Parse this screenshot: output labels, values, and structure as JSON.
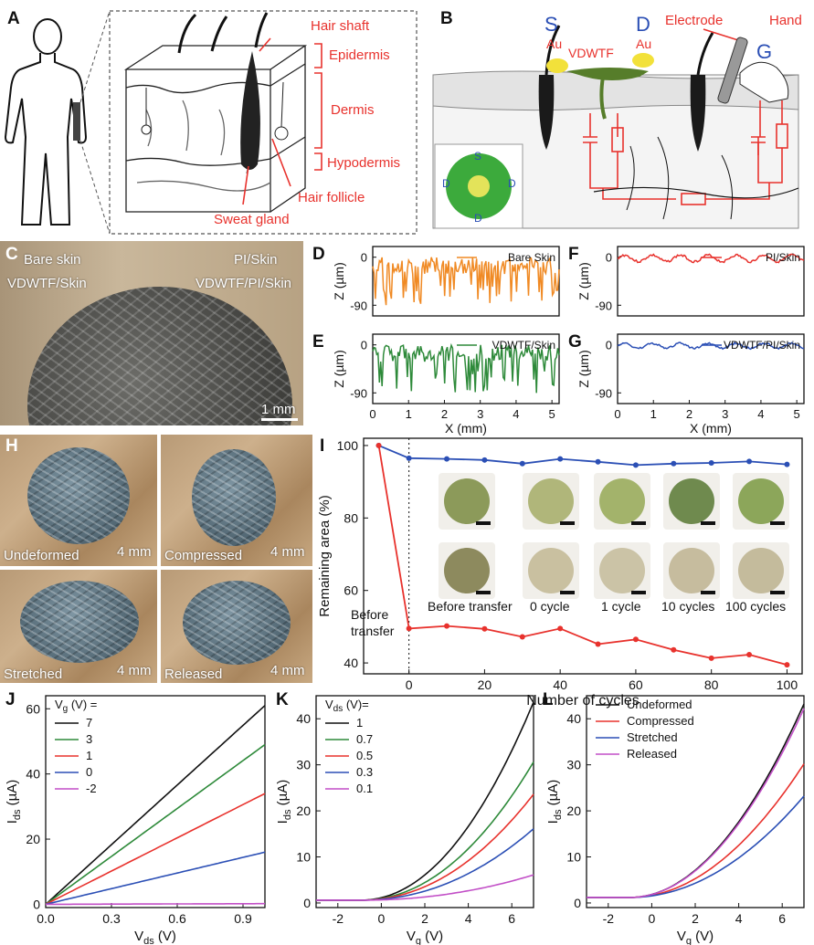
{
  "labels": {
    "A": "A",
    "B": "B",
    "C": "C",
    "D": "D",
    "E": "E",
    "F": "F",
    "G": "G",
    "H": "H",
    "I": "I",
    "J": "J",
    "K": "K",
    "L": "L"
  },
  "panelA": {
    "hair_shaft": "Hair shaft",
    "epidermis": "Epidermis",
    "dermis": "Dermis",
    "hypodermis": "Hypodermis",
    "hair_follicle": "Hair follicle",
    "sweat_gland": "Sweat gland",
    "label_color": "#e8322d"
  },
  "panelB": {
    "S": "S",
    "D": "D",
    "G": "G",
    "au_left": "Au",
    "au_right": "Au",
    "vdwtf": "VDWTF",
    "electrode": "Electrode",
    "hand": "Hand",
    "inset_S": "S",
    "inset_D": "D",
    "blue": "#2b4fb5",
    "red": "#e8322d"
  },
  "panelC": {
    "bare_skin": "Bare skin",
    "vdwtf_skin": "VDWTF/Skin",
    "pi_skin": "PI/Skin",
    "vdwtf_pi_skin": "VDWTF/PI/Skin",
    "scale": "1 mm"
  },
  "panelH": {
    "undeformed": "Undeformed",
    "compressed": "Compressed",
    "stretched": "Stretched",
    "released": "Released",
    "scale": "4 mm"
  },
  "panelI_thumbs": {
    "before_transfer": "Before transfer",
    "c0": "0 cycle",
    "c1": "1 cycle",
    "c10": "10 cycles",
    "c100": "100 cycles",
    "before_transfer_annotation": "Before\ntransfer"
  },
  "chart_data": [
    {
      "id": "D",
      "type": "line",
      "ylabel": "Z (µm)",
      "xlabel": "",
      "xlim": [
        0,
        5.2
      ],
      "ylim": [
        -110,
        20
      ],
      "yticks": [
        "0",
        "-90"
      ],
      "xticks": [],
      "series": [
        {
          "name": "Bare Skin",
          "color": "#f08a24",
          "amp": 90,
          "seed": 1
        }
      ]
    },
    {
      "id": "E",
      "type": "line",
      "ylabel": "Z (µm)",
      "xlabel": "X (mm)",
      "xlim": [
        0,
        5.2
      ],
      "ylim": [
        -110,
        20
      ],
      "yticks": [
        "0",
        "-90"
      ],
      "xticks": [
        "0",
        "1",
        "2",
        "3",
        "4",
        "5"
      ],
      "series": [
        {
          "name": "VDWTF/Skin",
          "color": "#2e8a3a",
          "amp": 90,
          "seed": 2
        }
      ]
    },
    {
      "id": "F",
      "type": "line",
      "ylabel": "Z (µm)",
      "xlabel": "",
      "xlim": [
        0,
        5.2
      ],
      "ylim": [
        -110,
        20
      ],
      "yticks": [
        "0",
        "-90"
      ],
      "xticks": [],
      "series": [
        {
          "name": "PI/Skin",
          "color": "#e8322d",
          "amp": 15,
          "seed": 3
        }
      ]
    },
    {
      "id": "G",
      "type": "line",
      "ylabel": "Z (µm)",
      "xlabel": "X (mm)",
      "xlim": [
        0,
        5.2
      ],
      "ylim": [
        -110,
        20
      ],
      "yticks": [
        "0",
        "-90"
      ],
      "xticks": [
        "0",
        "1",
        "2",
        "3",
        "4",
        "5"
      ],
      "series": [
        {
          "name": "VDWTF/PI/Skin",
          "color": "#2b4fb5",
          "amp": 12,
          "seed": 4
        }
      ]
    },
    {
      "id": "I",
      "type": "line",
      "xlabel": "Number of cycles",
      "ylabel": "Remaining area (%)",
      "xlim": [
        -12,
        104
      ],
      "ylim": [
        37,
        102
      ],
      "xticks": [
        0,
        20,
        40,
        60,
        80,
        100
      ],
      "yticks": [
        40,
        60,
        80,
        100
      ],
      "x": [
        -8,
        0,
        10,
        20,
        30,
        40,
        50,
        60,
        70,
        80,
        90,
        100
      ],
      "series": [
        {
          "name": "blue",
          "color": "#2b4fb5",
          "values": [
            100,
            96.5,
            96.3,
            96.0,
            95.0,
            96.3,
            95.5,
            94.6,
            95.0,
            95.2,
            95.6,
            94.8
          ]
        },
        {
          "name": "red",
          "color": "#e8322d",
          "values": [
            100,
            49.5,
            50.2,
            49.4,
            47.2,
            49.5,
            45.2,
            46.5,
            43.6,
            41.3,
            42.3,
            39.5
          ]
        }
      ]
    },
    {
      "id": "J",
      "type": "line",
      "xlabel": "V_ds (V)",
      "ylabel": "I_ds (µA)",
      "xlim": [
        0,
        1.0
      ],
      "ylim": [
        -1,
        64
      ],
      "xticks": [
        "0.0",
        "0.3",
        "0.6",
        "0.9"
      ],
      "yticks": [
        0,
        20,
        40,
        60
      ],
      "legend_title": "V_g (V) =",
      "series": [
        {
          "name": "7",
          "color": "#111111",
          "slope": 61
        },
        {
          "name": "3",
          "color": "#2e8a3a",
          "slope": 49
        },
        {
          "name": "1",
          "color": "#e8322d",
          "slope": 34
        },
        {
          "name": "0",
          "color": "#2b4fb5",
          "slope": 16
        },
        {
          "name": "-2",
          "color": "#c24fc7",
          "slope": 0.2
        }
      ]
    },
    {
      "id": "K",
      "type": "line",
      "xlabel": "V_g (V)",
      "ylabel": "I_ds (µA)",
      "xlim": [
        -3,
        7
      ],
      "ylim": [
        -1,
        45
      ],
      "xticks": [
        -2,
        0,
        2,
        4,
        6
      ],
      "yticks": [
        0,
        10,
        20,
        30,
        40
      ],
      "legend_title": "V_ds (V)=",
      "series": [
        {
          "name": "1",
          "color": "#111111",
          "end": 43
        },
        {
          "name": "0.7",
          "color": "#2e8a3a",
          "end": 30
        },
        {
          "name": "0.5",
          "color": "#e8322d",
          "end": 23
        },
        {
          "name": "0.3",
          "color": "#2b4fb5",
          "end": 15.5
        },
        {
          "name": "0.1",
          "color": "#c24fc7",
          "end": 5.5
        }
      ]
    },
    {
      "id": "L",
      "type": "line",
      "xlabel": "V_g (V)",
      "ylabel": "I_ds (µA)",
      "xlim": [
        -3,
        7
      ],
      "ylim": [
        -1,
        45
      ],
      "xticks": [
        -2,
        0,
        2,
        4,
        6
      ],
      "yticks": [
        0,
        10,
        20,
        30,
        40
      ],
      "series": [
        {
          "name": "Undeformed",
          "color": "#111111",
          "end": 43
        },
        {
          "name": "Compressed",
          "color": "#e8322d",
          "end": 30
        },
        {
          "name": "Stretched",
          "color": "#2b4fb5",
          "end": 23
        },
        {
          "name": "Released",
          "color": "#c24fc7",
          "end": 42
        }
      ]
    }
  ]
}
